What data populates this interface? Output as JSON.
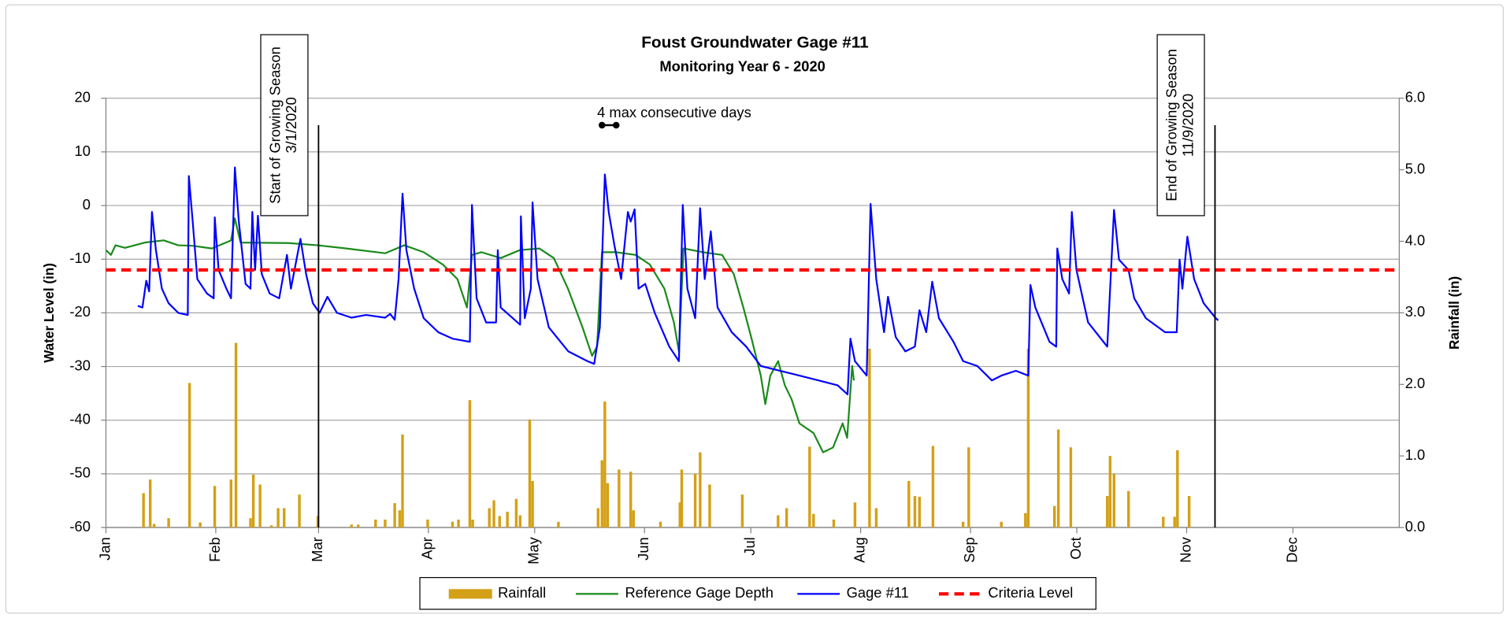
{
  "chart_data": {
    "type": "combo",
    "title": "Foust Groundwater Gage #11",
    "subtitle": "Monitoring Year 6 - 2020",
    "y_label": "Water Level (in)",
    "y2_label": "Rainfall (in)",
    "xlim": [
      1,
      366
    ],
    "xticks": [
      {
        "value": 1,
        "label": "Jan"
      },
      {
        "value": 32,
        "label": "Feb"
      },
      {
        "value": 61,
        "label": "Mar"
      },
      {
        "value": 92,
        "label": "Apr"
      },
      {
        "value": 122,
        "label": "May"
      },
      {
        "value": 153,
        "label": "Jun"
      },
      {
        "value": 183,
        "label": "Jul"
      },
      {
        "value": 214,
        "label": "Aug"
      },
      {
        "value": 245,
        "label": "Sep"
      },
      {
        "value": 275,
        "label": "Oct"
      },
      {
        "value": 306,
        "label": "Nov"
      },
      {
        "value": 336,
        "label": "Dec"
      }
    ],
    "ylim": [
      -60,
      20
    ],
    "yticks": [
      -60,
      -50,
      -40,
      -30,
      -20,
      -10,
      0,
      10,
      20
    ],
    "y2lim": [
      0,
      6
    ],
    "y2ticks": [
      {
        "value": 0,
        "label": "0.0"
      },
      {
        "value": 1,
        "label": "1.0"
      },
      {
        "value": 2,
        "label": "2.0"
      },
      {
        "value": 3,
        "label": "3.0"
      },
      {
        "value": 4,
        "label": "4.0"
      },
      {
        "value": 5,
        "label": "5.0"
      },
      {
        "value": 6,
        "label": "6.0"
      }
    ],
    "grid": true,
    "legend": "bottom",
    "series": [
      {
        "name": "Rainfall",
        "type": "bar",
        "axis": "y2",
        "color": "#d4a017",
        "x": [
          11.6,
          13.5,
          14.6,
          18.7,
          24.6,
          27.6,
          31.7,
          36.3,
          37.7,
          41.8,
          42.6,
          44.5,
          47.7,
          49.6,
          51.3,
          55.6,
          60.8,
          70.3,
          72.2,
          77.1,
          79.8,
          82.5,
          83.9,
          84.7,
          91.8,
          98.8,
          100.5,
          103.7,
          104.5,
          109.2,
          110.5,
          112.1,
          114.3,
          116.8,
          117.9,
          120.6,
          121.4,
          128.7,
          139.9,
          141,
          141.8,
          142.6,
          145.8,
          149.1,
          149.9,
          157.5,
          163,
          163.5,
          167.3,
          168.7,
          171.4,
          180.6,
          190.7,
          193.1,
          199.6,
          200.7,
          206.4,
          212.4,
          216.5,
          218.4,
          227.6,
          229.3,
          230.6,
          234.4,
          242.9,
          244.5,
          253.7,
          260.5,
          261.3,
          268.7,
          269.8,
          273.3,
          283.6,
          284.4,
          285.5,
          289.6,
          299.4,
          302.6,
          303.4,
          306.7
        ],
        "values": [
          0.48,
          0.67,
          0.05,
          0.13,
          2.02,
          0.07,
          0.58,
          0.67,
          2.58,
          0.13,
          0.74,
          0.6,
          0.03,
          0.27,
          0.27,
          0.46,
          0.16,
          0.04,
          0.04,
          0.11,
          0.11,
          0.34,
          0.24,
          1.3,
          0.11,
          0.08,
          0.11,
          1.78,
          0.11,
          0.27,
          0.38,
          0.16,
          0.22,
          0.4,
          0.17,
          1.51,
          0.65,
          0.08,
          0.27,
          0.94,
          1.76,
          0.62,
          0.81,
          0.78,
          0.24,
          0.08,
          0.35,
          0.81,
          0.75,
          1.05,
          0.6,
          0.46,
          0.17,
          0.27,
          1.13,
          0.19,
          0.11,
          0.35,
          2.5,
          0.27,
          0.65,
          0.44,
          0.43,
          1.14,
          0.08,
          1.12,
          0.08,
          0.2,
          2.5,
          0.3,
          1.37,
          1.12,
          0.44,
          1.0,
          0.75,
          0.51,
          0.15,
          0.15,
          1.08,
          0.44
        ]
      },
      {
        "name": "Reference Gage Depth",
        "type": "line",
        "color": "#1a8a1a",
        "x": [
          1,
          2.4,
          3.7,
          6.4,
          11.9,
          17.3,
          21.4,
          25.5,
          30.9,
          36.3,
          37.4,
          39,
          52.6,
          60.8,
          68.9,
          79.8,
          85.2,
          90.7,
          96.1,
          100.2,
          102.9,
          104.3,
          107,
          112.4,
          117.8,
          123.3,
          127.4,
          131.4,
          135.5,
          138.2,
          139.6,
          141,
          145,
          150.5,
          154.5,
          158.6,
          161.3,
          162.7,
          164,
          169.5,
          174.9,
          178.2,
          180.9,
          183.1,
          185.8,
          187.1,
          188.5,
          190.7,
          192.6,
          194.5,
          196.7,
          200.7,
          203.4,
          206.2,
          208.9,
          210.2,
          211.6,
          212.1
        ],
        "values": [
          -8.3,
          -9.2,
          -7.4,
          -7.9,
          -6.9,
          -6.5,
          -7.4,
          -7.5,
          -8,
          -6.5,
          -2.4,
          -6.9,
          -7,
          -7.4,
          -8,
          -8.9,
          -7.4,
          -8.7,
          -11,
          -13.7,
          -19,
          -9.2,
          -8.7,
          -9.8,
          -8.3,
          -8,
          -9.8,
          -15.5,
          -22.7,
          -28,
          -26.3,
          -8.7,
          -8.7,
          -9.2,
          -11,
          -15.5,
          -21.8,
          -27.2,
          -8,
          -8.7,
          -9.2,
          -12.8,
          -19,
          -24.5,
          -31.7,
          -37,
          -31.7,
          -29,
          -33.5,
          -36.1,
          -40.6,
          -42.4,
          -46,
          -45.1,
          -40.6,
          -43.3,
          -29.9,
          -32.6
        ]
      },
      {
        "name": "Gage #11",
        "type": "line",
        "color": "#0000ff",
        "x": [
          10.0,
          11.3,
          12.4,
          13.2,
          14.0,
          15.1,
          16.8,
          18.7,
          21.4,
          24.1,
          24.4,
          25.5,
          26.8,
          29.5,
          31.4,
          31.7,
          32.8,
          35.0,
          36.3,
          37.4,
          38.5,
          40.4,
          41.8,
          42.3,
          43.1,
          43.9,
          45.0,
          47.2,
          49.9,
          52.1,
          53.2,
          55.9,
          57.5,
          59.4,
          61.3,
          63.5,
          66.2,
          70.3,
          74.4,
          79.8,
          81.2,
          82.5,
          83.6,
          84.7,
          85.8,
          88.0,
          90.7,
          94.8,
          98.8,
          103.7,
          104.3,
          105.6,
          108.3,
          111.1,
          111.6,
          112.4,
          117.9,
          118.1,
          119.2,
          120.9,
          121.4,
          122.8,
          126.0,
          131.5,
          136.9,
          138.8,
          140.4,
          141.8,
          142.9,
          144.5,
          146.4,
          148.3,
          149.1,
          150.2,
          151.3,
          153.2,
          155.9,
          160.0,
          162.7,
          163.8,
          165.1,
          167.3,
          168.7,
          170.0,
          171.7,
          173.6,
          177.6,
          181.7,
          185.8,
          191.2,
          196.7,
          202.1,
          207.5,
          210.3,
          211.1,
          212.4,
          215.7,
          216.8,
          218.4,
          220.6,
          221.7,
          223.9,
          226.6,
          229.3,
          230.6,
          232.5,
          234.2,
          236.1,
          240.2,
          242.9,
          246.9,
          251.0,
          253.7,
          257.8,
          261.3,
          261.9,
          263.3,
          267.3,
          269.2,
          269.5,
          270.9,
          272.8,
          273.6,
          274.9,
          278.2,
          283.6,
          285.5,
          286.9,
          289.6,
          291.2,
          294.5,
          299.9,
          303.2,
          304.0,
          304.8,
          306.2,
          308.1,
          310.8,
          314.1,
          314.9
        ],
        "values": [
          -18.7,
          -19,
          -14,
          -16,
          -1.2,
          -8.3,
          -15.5,
          -18.2,
          -20,
          -20.4,
          5.5,
          -3,
          -13.7,
          -16.4,
          -17.3,
          -2.2,
          -12,
          -15.5,
          -17.3,
          7.1,
          -3,
          -14.6,
          -15.5,
          -1.2,
          -12,
          -1.9,
          -12.8,
          -16.4,
          -17.3,
          -9.2,
          -15.5,
          -6.2,
          -12.8,
          -18.2,
          -20,
          -17,
          -20,
          -20.9,
          -20.4,
          -20.9,
          -20.2,
          -21.3,
          -13.7,
          2.2,
          -8.3,
          -15.5,
          -21,
          -23.6,
          -24.8,
          -25.4,
          0.1,
          -17.3,
          -21.8,
          -21.8,
          -8.3,
          -19,
          -22.2,
          -2,
          -21,
          -15.5,
          0.6,
          -13.7,
          -22.7,
          -27.2,
          -29,
          -29.5,
          -22.7,
          5.8,
          -1.2,
          -7.4,
          -13.7,
          -1.2,
          -3,
          -0.7,
          -15.5,
          -14.6,
          -20,
          -26.3,
          -29,
          0.1,
          -15.5,
          -21,
          -0.5,
          -13.7,
          -4.8,
          -19,
          -23.6,
          -26.3,
          -29.9,
          -30.8,
          -31.7,
          -32.6,
          -33.5,
          -35.2,
          -24.8,
          -29,
          -31.7,
          0.3,
          -13.7,
          -23.6,
          -17,
          -24.5,
          -27.2,
          -26.3,
          -19.5,
          -23.6,
          -14.2,
          -21,
          -25.4,
          -29,
          -29.9,
          -32.6,
          -31.7,
          -30.8,
          -31.7,
          -14.8,
          -19,
          -25.4,
          -26.3,
          -8,
          -13.7,
          -16.4,
          -1.2,
          -12,
          -21.8,
          -26.3,
          -0.8,
          -10.1,
          -12,
          -17.3,
          -21,
          -23.6,
          -23.6,
          -10.1,
          -15.5,
          -5.8,
          -13.7,
          -18.2,
          -20.9,
          -21.4
        ]
      },
      {
        "name": "Criteria Level",
        "type": "hline",
        "color": "#ff0000",
        "values": [
          -12
        ]
      }
    ],
    "annotations": [
      {
        "lines": [
          "Start of Growing Season",
          "3/1/2020"
        ],
        "x": 61
      },
      {
        "lines": [
          "End of Growing Season",
          "11/9/2020"
        ],
        "x": 314
      },
      {
        "text": "4 max consecutive days",
        "x": [
          141,
          145
        ]
      }
    ]
  }
}
